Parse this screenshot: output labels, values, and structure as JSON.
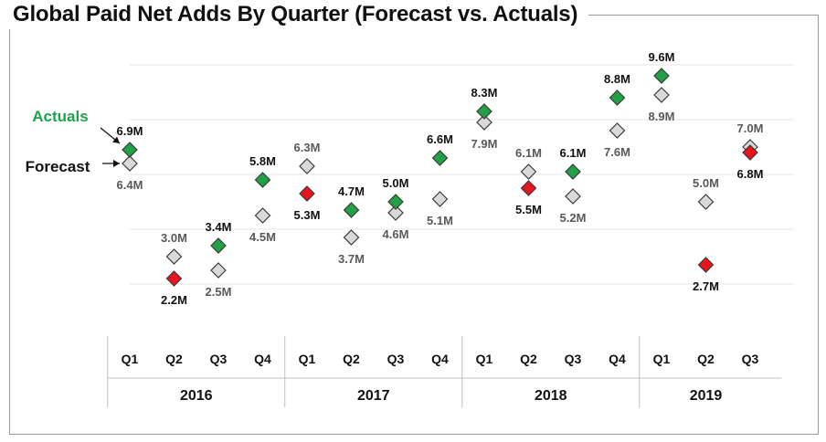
{
  "chart_data": {
    "type": "scatter",
    "title": "Global Paid Net Adds By Quarter (Forecast vs. Actuals)",
    "xlabel": "",
    "ylabel": "",
    "grid": true,
    "units": "M",
    "categories": [
      {
        "quarter": "Q1",
        "year": "2016"
      },
      {
        "quarter": "Q2",
        "year": "2016"
      },
      {
        "quarter": "Q3",
        "year": "2016"
      },
      {
        "quarter": "Q4",
        "year": "2016"
      },
      {
        "quarter": "Q1",
        "year": "2017"
      },
      {
        "quarter": "Q2",
        "year": "2017"
      },
      {
        "quarter": "Q3",
        "year": "2017"
      },
      {
        "quarter": "Q4",
        "year": "2017"
      },
      {
        "quarter": "Q1",
        "year": "2018"
      },
      {
        "quarter": "Q2",
        "year": "2018"
      },
      {
        "quarter": "Q3",
        "year": "2018"
      },
      {
        "quarter": "Q4",
        "year": "2018"
      },
      {
        "quarter": "Q1",
        "year": "2019"
      },
      {
        "quarter": "Q2",
        "year": "2019"
      },
      {
        "quarter": "Q3",
        "year": "2019"
      }
    ],
    "years": [
      "2016",
      "2017",
      "2018",
      "2019"
    ],
    "series": [
      {
        "name": "Actuals",
        "color": "#22a046",
        "label_color": "#1ea24a",
        "values": [
          6.9,
          2.2,
          3.4,
          5.8,
          5.3,
          4.7,
          5.0,
          6.6,
          8.3,
          5.5,
          6.1,
          8.8,
          9.6,
          2.7,
          6.8
        ],
        "labels": [
          "6.9M",
          "2.2M",
          "3.4M",
          "5.8M",
          "5.3M",
          "4.7M",
          "5.0M",
          "6.6M",
          "8.3M",
          "5.5M",
          "6.1M",
          "8.8M",
          "9.6M",
          "2.7M",
          "6.8M"
        ],
        "missed_forecast": [
          false,
          true,
          false,
          false,
          true,
          false,
          false,
          false,
          false,
          true,
          false,
          false,
          false,
          true,
          true
        ]
      },
      {
        "name": "Forecast",
        "color": "#d9d9d9",
        "label_color": "#111111",
        "values": [
          6.4,
          3.0,
          2.5,
          4.5,
          6.3,
          3.7,
          4.6,
          5.1,
          7.9,
          6.1,
          5.2,
          7.6,
          8.9,
          5.0,
          7.0
        ],
        "labels": [
          "6.4M",
          "3.0M",
          "2.5M",
          "4.5M",
          "6.3M",
          "3.7M",
          "4.6M",
          "5.1M",
          "7.9M",
          "6.1M",
          "5.2M",
          "7.6M",
          "8.9M",
          "5.0M",
          "7.0M"
        ]
      }
    ],
    "miss_color": "#e8141e",
    "ylim": [
      0,
      11
    ]
  }
}
